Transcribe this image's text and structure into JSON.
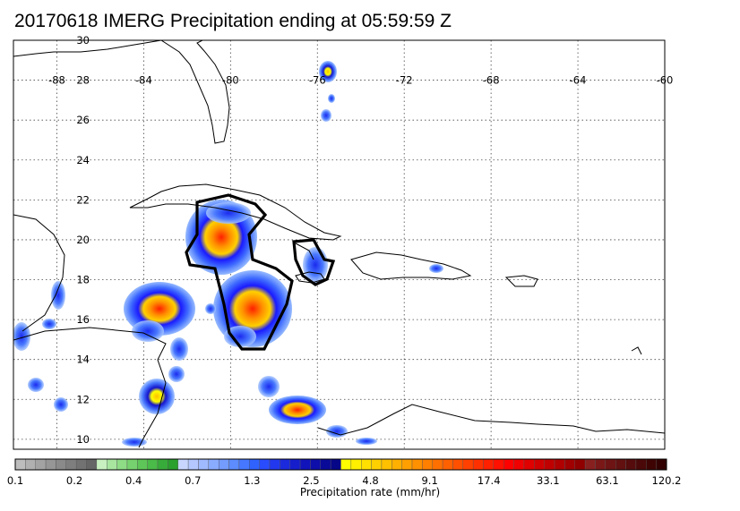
{
  "title": "20170618 IMERG Precipitation ending at 05:59:59 Z",
  "map": {
    "lat_ticks": [
      "30",
      "28",
      "26",
      "24",
      "22",
      "20",
      "18",
      "16",
      "14",
      "12",
      "10"
    ],
    "lon_ticks": [
      "-88",
      "-84",
      "-80",
      "-76",
      "-72",
      "-68",
      "-64",
      "-60"
    ],
    "grid": true,
    "extent": {
      "lon": [
        -90,
        -60
      ],
      "lat": [
        9.5,
        30
      ]
    }
  },
  "colorbar": {
    "labels": [
      "0.1",
      "0.2",
      "0.4",
      "0.7",
      "1.3",
      "2.5",
      "4.8",
      "9.1",
      "17.4",
      "33.1",
      "63.1",
      "120.2"
    ],
    "caption": "Precipitation rate (mm/hr)",
    "colors": [
      "#bdbdbd",
      "#b0b0b0",
      "#a3a3a3",
      "#969696",
      "#8a8a8a",
      "#7e7e7e",
      "#727272",
      "#666666",
      "#c8f0c0",
      "#a8e6a0",
      "#8edc86",
      "#76d26e",
      "#5ec658",
      "#4aba48",
      "#38ac3a",
      "#2aa02e",
      "#c8d6ff",
      "#b4c8ff",
      "#a0baff",
      "#8aacff",
      "#749cff",
      "#5c8cff",
      "#4678ff",
      "#3062ff",
      "#2a4cff",
      "#2238ee",
      "#1c2add",
      "#161ecc",
      "#1214bb",
      "#0e0eaa",
      "#0a0a99",
      "#060688",
      "#ffff00",
      "#fff000",
      "#ffe000",
      "#ffd000",
      "#ffc000",
      "#ffb000",
      "#ffa000",
      "#ff9000",
      "#ff8000",
      "#ff7000",
      "#ff6000",
      "#ff5000",
      "#ff4000",
      "#ff3000",
      "#ff2000",
      "#ff1000",
      "#ff0000",
      "#f00000",
      "#e00000",
      "#d00000",
      "#c00000",
      "#b00000",
      "#a00000",
      "#900000",
      "#882020",
      "#7a1818",
      "#6e1414",
      "#621010",
      "#560c0c",
      "#4a0808",
      "#3e0404",
      "#320000"
    ]
  }
}
